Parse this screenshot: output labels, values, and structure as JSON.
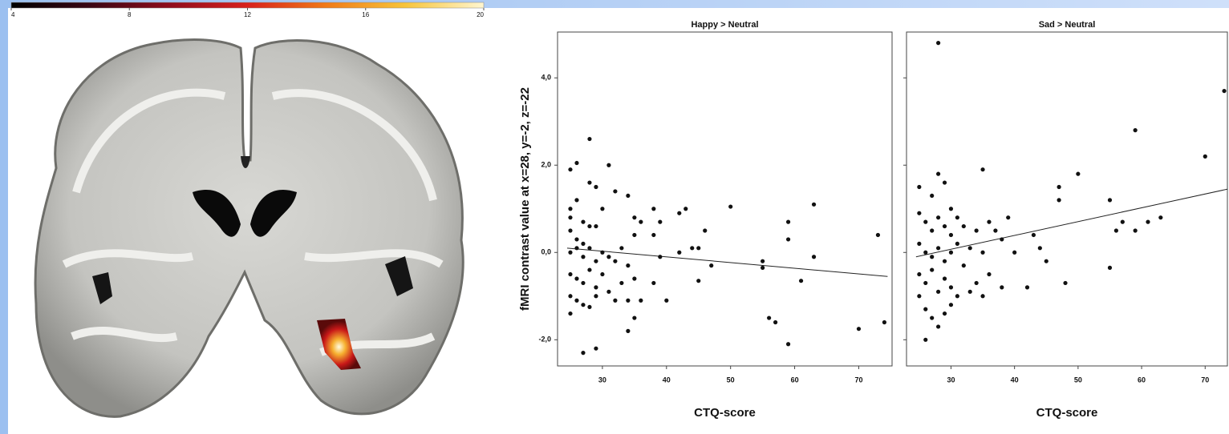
{
  "chart_data": [
    {
      "type": "colorbar",
      "xlim": [
        4,
        20
      ],
      "xticks": [
        4,
        8,
        12,
        16,
        20
      ],
      "colors": [
        "#000000",
        "#3a0614",
        "#8e0c1c",
        "#d8201c",
        "#f07a18",
        "#f7c43a",
        "#fff6d0"
      ]
    },
    {
      "type": "scatter",
      "title": "Happy > Neutral",
      "xlabel": "CTQ-score",
      "ylabel": "fMRI contrast value at x=28, y=-2, z=-22",
      "xlim": [
        23,
        75.2
      ],
      "ylim": [
        -2.6,
        5.05
      ],
      "xticks": [
        30,
        40,
        50,
        60,
        70
      ],
      "yticks": [
        {
          "value": 4,
          "label": "4,0"
        },
        {
          "value": 2,
          "label": "2,0"
        },
        {
          "value": 0,
          "label": "0,0"
        },
        {
          "value": -2,
          "label": "-2,0"
        }
      ],
      "color": "#111111",
      "x": [
        25,
        26,
        28,
        31,
        28,
        29,
        25,
        25,
        26,
        27,
        28,
        29,
        25,
        26,
        27,
        25,
        26,
        27,
        28,
        29,
        30,
        31,
        32,
        33,
        34,
        35,
        25,
        26,
        27,
        28,
        29,
        30,
        31,
        33,
        35,
        25,
        26,
        27,
        28,
        29,
        25,
        32,
        34,
        35,
        34,
        27,
        29,
        30,
        32,
        34,
        35,
        36,
        38,
        39,
        38,
        39,
        38,
        40,
        36,
        42,
        43,
        46,
        45,
        47,
        45,
        50,
        55,
        55,
        56,
        57,
        59,
        59,
        59,
        61,
        63,
        63,
        70,
        73,
        74,
        42,
        44
      ],
      "y": [
        1.9,
        2.05,
        2.6,
        2.0,
        1.6,
        1.5,
        1.0,
        0.8,
        1.2,
        0.7,
        0.6,
        0.6,
        0.5,
        0.3,
        0.2,
        0.0,
        0.1,
        -0.1,
        0.1,
        -0.2,
        0.0,
        -0.1,
        -0.2,
        0.1,
        -0.3,
        0.4,
        -0.5,
        -0.6,
        -0.7,
        -0.4,
        -0.8,
        -0.5,
        -0.9,
        -0.7,
        -0.6,
        -1.0,
        -1.1,
        -1.2,
        -1.25,
        -1.0,
        -1.4,
        -1.1,
        -1.1,
        -1.5,
        -1.8,
        -2.3,
        -2.2,
        1.0,
        1.4,
        1.3,
        0.8,
        0.7,
        1.0,
        0.7,
        0.4,
        -0.1,
        -0.7,
        -1.1,
        -1.1,
        0.9,
        1.0,
        0.5,
        0.1,
        -0.3,
        -0.65,
        1.05,
        -0.2,
        -0.35,
        -1.5,
        -1.6,
        0.7,
        0.3,
        -2.1,
        -0.65,
        1.1,
        -0.1,
        -1.75,
        0.4,
        -1.6,
        0.0,
        0.1
      ],
      "fit": {
        "x": [
          24.5,
          74.5
        ],
        "y": [
          0.1,
          -0.55
        ]
      }
    },
    {
      "type": "scatter",
      "title": "Sad > Neutral",
      "xlabel": "CTQ-score",
      "xlim": [
        23,
        73.5
      ],
      "ylim": [
        -2.6,
        5.05
      ],
      "xticks": [
        30,
        40,
        50,
        60,
        70
      ],
      "color": "#111111",
      "x": [
        28,
        25,
        27,
        28,
        29,
        30,
        35,
        25,
        26,
        27,
        28,
        29,
        30,
        31,
        32,
        25,
        26,
        27,
        28,
        29,
        30,
        31,
        32,
        33,
        34,
        35,
        36,
        37,
        25,
        26,
        27,
        28,
        29,
        30,
        31,
        33,
        34,
        25,
        26,
        27,
        28,
        29,
        30,
        26,
        38,
        39,
        38,
        40,
        43,
        42,
        44,
        45,
        47,
        47,
        48,
        50,
        55,
        55,
        56,
        57,
        59,
        59,
        61,
        63,
        70,
        73,
        36,
        35
      ],
      "y": [
        4.8,
        1.5,
        1.3,
        1.8,
        1.6,
        1.0,
        1.9,
        0.9,
        0.7,
        0.5,
        0.8,
        0.6,
        0.4,
        0.8,
        0.6,
        0.2,
        0.0,
        -0.1,
        0.1,
        -0.2,
        0.0,
        0.2,
        -0.3,
        0.1,
        0.5,
        0.0,
        0.7,
        0.5,
        -0.5,
        -0.7,
        -0.4,
        -0.9,
        -0.6,
        -0.8,
        -1.0,
        -0.9,
        -0.7,
        -1.0,
        -1.3,
        -1.5,
        -1.7,
        -1.4,
        -1.2,
        -2.0,
        0.3,
        0.8,
        -0.8,
        0.0,
        0.4,
        -0.8,
        0.1,
        -0.2,
        1.5,
        1.2,
        -0.7,
        1.8,
        1.2,
        -0.35,
        0.5,
        0.7,
        2.8,
        0.5,
        0.7,
        0.8,
        2.2,
        3.7,
        -0.5,
        -1.0
      ],
      "fit": {
        "x": [
          24.5,
          73.5
        ],
        "y": [
          -0.1,
          1.45
        ]
      }
    }
  ]
}
